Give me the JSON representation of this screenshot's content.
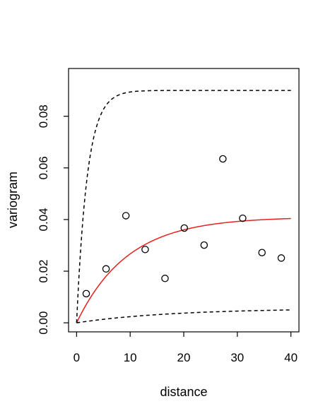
{
  "chart_data": {
    "type": "scatter",
    "title": "",
    "xlabel": "distance",
    "ylabel": "variogram",
    "xlim": [
      -1.5,
      41.5
    ],
    "ylim": [
      -0.0035,
      0.0985
    ],
    "xticks": [
      0,
      10,
      20,
      30,
      40
    ],
    "yticks": [
      0.0,
      0.02,
      0.04,
      0.06,
      0.08
    ],
    "xtick_labels": [
      "0",
      "10",
      "20",
      "30",
      "40"
    ],
    "ytick_labels": [
      "0.00",
      "0.02",
      "0.04",
      "0.06",
      "0.08"
    ],
    "grid": false,
    "series": [
      {
        "kind": "points",
        "marker": "open-circle",
        "color": "#000000",
        "x": [
          1.8,
          5.5,
          9.2,
          12.8,
          16.5,
          20.1,
          23.8,
          27.3,
          31.0,
          34.6,
          38.2
        ],
        "y": [
          0.0113,
          0.0209,
          0.0415,
          0.0284,
          0.0172,
          0.0367,
          0.0301,
          0.0635,
          0.0405,
          0.0272,
          0.0251
        ]
      },
      {
        "kind": "curve",
        "style": "solid",
        "color": "#e8201e",
        "model": "exponential",
        "sill": 0.041,
        "range": 9.5,
        "x_start": 0,
        "x_end": 40
      },
      {
        "kind": "curve",
        "style": "dashed",
        "color": "#000000",
        "model": "exponential",
        "sill": 0.09,
        "range": 2.0,
        "x_start": 0,
        "x_end": 40
      },
      {
        "kind": "curve",
        "style": "dashed",
        "color": "#000000",
        "model": "exponential",
        "sill": 0.0056,
        "range": 18,
        "x_start": 0,
        "x_end": 40
      }
    ]
  }
}
